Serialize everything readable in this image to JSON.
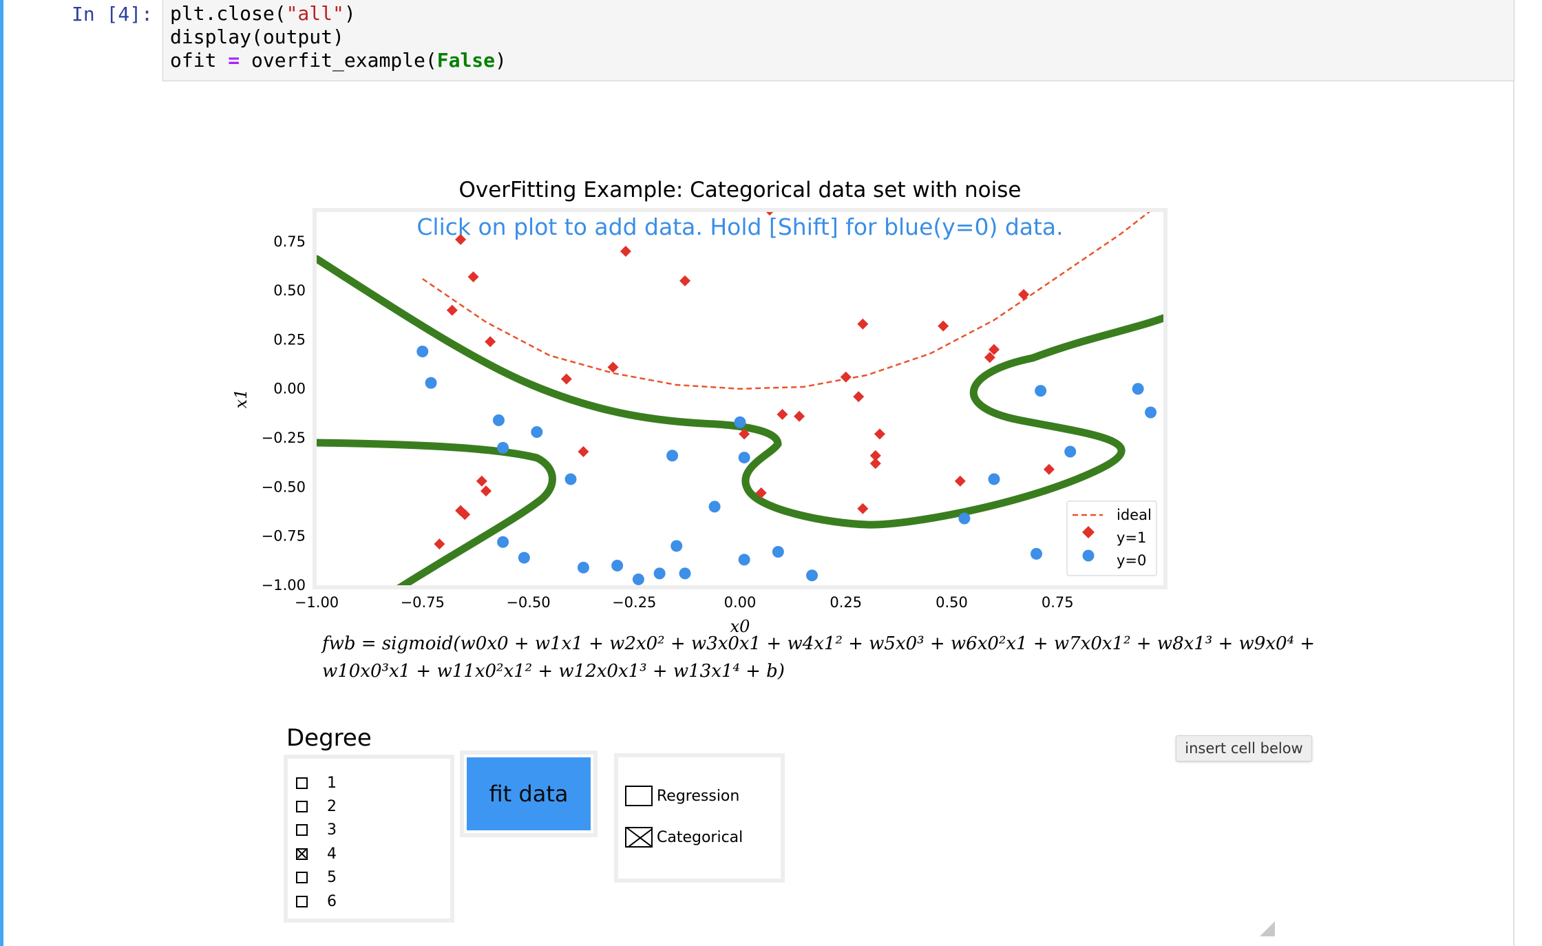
{
  "cell": {
    "prompt": "In [4]:",
    "code_lines": [
      [
        {
          "t": "plt.close(",
          "c": ""
        },
        {
          "t": "\"all\"",
          "c": "str"
        },
        {
          "t": ")",
          "c": ""
        }
      ],
      [
        {
          "t": "display(output)",
          "c": ""
        }
      ],
      [
        {
          "t": "ofit ",
          "c": ""
        },
        {
          "t": "=",
          "c": "op"
        },
        {
          "t": " overfit_example(",
          "c": ""
        },
        {
          "t": "False",
          "c": "kw"
        },
        {
          "t": ")",
          "c": ""
        }
      ]
    ]
  },
  "figure": {
    "title": "OverFitting Example: Categorical data set with noise",
    "instruction": "Click on plot to add data. Hold [Shift] for blue(y=0) data.",
    "instruction_color": "#3a8ee6",
    "colors": {
      "ideal": "#e8542a",
      "y1": "#e0322a",
      "y0": "#3d8fe8",
      "boundary": "#3a7d1f"
    },
    "formula_line1": "fwb = sigmoid(w0x0 + w1x1 + w2x0² + w3x0x1 + w4x1² + w5x0³ + w6x0²x1 + w7x0x1² + w8x1³ + w9x0⁴ +",
    "formula_line2": "w10x0³x1 + w11x0²x1² + w12x0x1³ + w13x1⁴ + b)"
  },
  "chart_data": {
    "type": "scatter",
    "xlabel": "x0",
    "ylabel": "x1",
    "xlim": [
      -1.0,
      1.0
    ],
    "ylim": [
      -1.0,
      0.9
    ],
    "xticks": [
      "−1.00",
      "−0.75",
      "−0.50",
      "−0.25",
      "0.00",
      "0.25",
      "0.50",
      "0.75"
    ],
    "xtick_values": [
      -1.0,
      -0.75,
      -0.5,
      -0.25,
      0.0,
      0.25,
      0.5,
      0.75
    ],
    "yticks": [
      "0.75",
      "0.50",
      "0.25",
      "0.00",
      "−0.25",
      "−0.50",
      "−0.75",
      "−1.00"
    ],
    "ytick_values": [
      0.75,
      0.5,
      0.25,
      0.0,
      -0.25,
      -0.5,
      -0.75,
      -1.0
    ],
    "legend": {
      "position": "lower-right",
      "entries": [
        "ideal",
        "y=1",
        "y=0"
      ]
    },
    "series": [
      {
        "name": "y=1",
        "marker": "diamond",
        "points": [
          [
            -0.66,
            0.76
          ],
          [
            -0.63,
            0.57
          ],
          [
            -0.68,
            0.4
          ],
          [
            -0.59,
            0.24
          ],
          [
            -0.41,
            0.05
          ],
          [
            -0.3,
            0.11
          ],
          [
            -0.27,
            0.7
          ],
          [
            -0.13,
            0.55
          ],
          [
            0.07,
            0.91
          ],
          [
            0.29,
            0.33
          ],
          [
            0.48,
            0.32
          ],
          [
            0.67,
            0.48
          ],
          [
            0.6,
            0.2
          ],
          [
            0.59,
            0.16
          ],
          [
            0.25,
            0.06
          ],
          [
            0.28,
            -0.04
          ],
          [
            0.1,
            -0.13
          ],
          [
            0.14,
            -0.14
          ],
          [
            0.01,
            -0.23
          ],
          [
            0.33,
            -0.23
          ],
          [
            0.32,
            -0.34
          ],
          [
            0.32,
            -0.38
          ],
          [
            -0.37,
            -0.32
          ],
          [
            -0.61,
            -0.47
          ],
          [
            -0.6,
            -0.52
          ],
          [
            -0.66,
            -0.62
          ],
          [
            -0.65,
            -0.64
          ],
          [
            -0.71,
            -0.79
          ],
          [
            0.05,
            -0.53
          ],
          [
            0.29,
            -0.61
          ],
          [
            0.52,
            -0.47
          ],
          [
            0.73,
            -0.41
          ]
        ]
      },
      {
        "name": "y=0",
        "marker": "circle",
        "points": [
          [
            -0.75,
            0.19
          ],
          [
            -0.73,
            0.03
          ],
          [
            -0.57,
            -0.16
          ],
          [
            -0.48,
            -0.22
          ],
          [
            -0.56,
            -0.3
          ],
          [
            -0.4,
            -0.46
          ],
          [
            -0.16,
            -0.34
          ],
          [
            -0.06,
            -0.6
          ],
          [
            0.0,
            -0.17
          ],
          [
            0.01,
            -0.35
          ],
          [
            -0.56,
            -0.78
          ],
          [
            -0.51,
            -0.86
          ],
          [
            -0.37,
            -0.91
          ],
          [
            -0.29,
            -0.9
          ],
          [
            -0.24,
            -0.97
          ],
          [
            -0.19,
            -0.94
          ],
          [
            -0.15,
            -0.8
          ],
          [
            -0.13,
            -0.94
          ],
          [
            0.01,
            -0.87
          ],
          [
            0.09,
            -0.83
          ],
          [
            0.17,
            -0.95
          ],
          [
            0.53,
            -0.66
          ],
          [
            0.6,
            -0.46
          ],
          [
            0.7,
            -0.84
          ],
          [
            0.71,
            -0.01
          ],
          [
            0.78,
            -0.32
          ],
          [
            0.94,
            0.0
          ],
          [
            0.97,
            -0.12
          ]
        ]
      },
      {
        "name": "ideal",
        "marker": "dashed-line",
        "points": [
          [
            -0.75,
            0.56
          ],
          [
            -0.6,
            0.34
          ],
          [
            -0.45,
            0.17
          ],
          [
            -0.3,
            0.08
          ],
          [
            -0.15,
            0.02
          ],
          [
            0.0,
            0.0
          ],
          [
            0.15,
            0.01
          ],
          [
            0.3,
            0.07
          ],
          [
            0.45,
            0.18
          ],
          [
            0.6,
            0.35
          ],
          [
            0.75,
            0.57
          ],
          [
            0.9,
            0.79
          ],
          [
            0.99,
            0.94
          ]
        ]
      }
    ]
  },
  "controls": {
    "degree_title": "Degree",
    "degree_options": [
      {
        "label": "1",
        "checked": false
      },
      {
        "label": "2",
        "checked": false
      },
      {
        "label": "3",
        "checked": false
      },
      {
        "label": "4",
        "checked": true
      },
      {
        "label": "5",
        "checked": false
      },
      {
        "label": "6",
        "checked": false
      }
    ],
    "fit_button": "fit data",
    "type_options": [
      {
        "label": "Regression",
        "checked": false
      },
      {
        "label": "Categorical",
        "checked": true
      }
    ],
    "insert_cell_button": "insert cell below"
  }
}
